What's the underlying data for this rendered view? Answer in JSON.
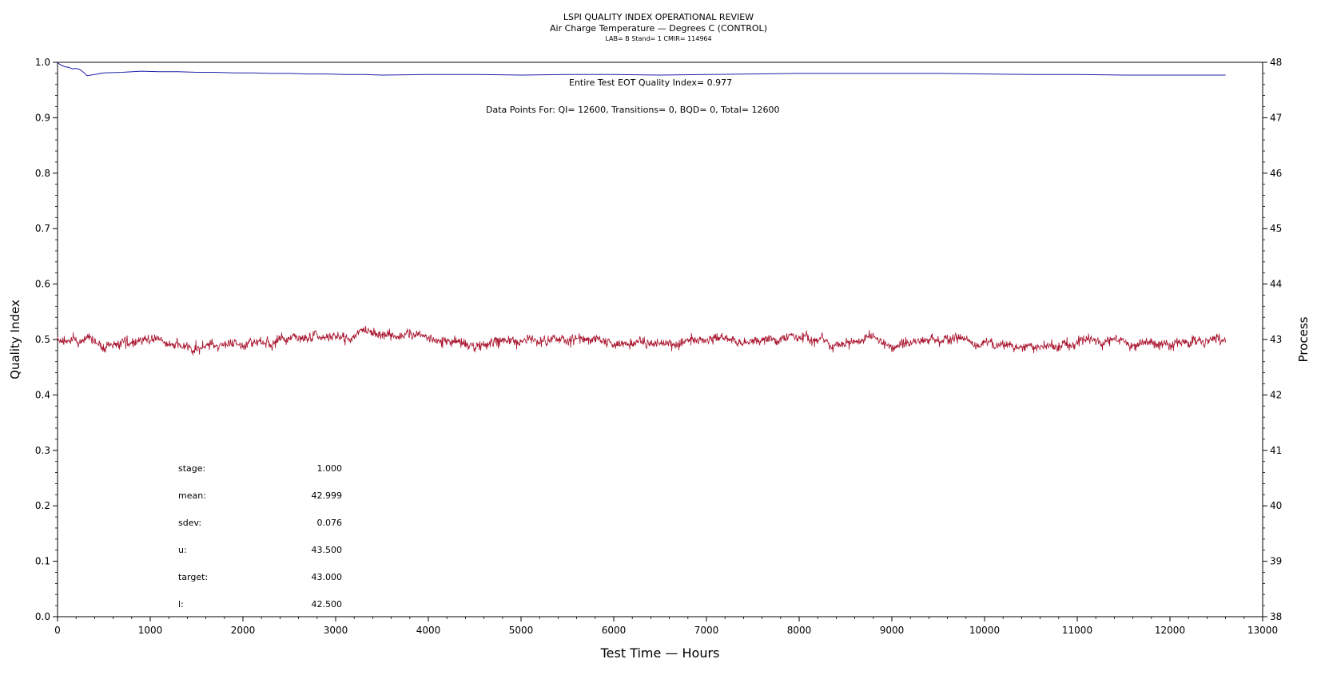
{
  "chart_data": {
    "type": "line",
    "title": "LSPI QUALITY INDEX OPERATIONAL REVIEW",
    "subtitle": "Air Charge Temperature — Degrees C (CONTROL)",
    "subtitle2": "LAB= B Stand= 1 CMIR= 114964",
    "xlabel": "Test Time — Hours",
    "ylabel_left": "Quality Index",
    "ylabel_right": "Process",
    "xlim": [
      0,
      13000
    ],
    "ylim_left": [
      0.0,
      1.0
    ],
    "ylim_right": [
      38,
      48
    ],
    "x_ticks": [
      "0",
      "1000",
      "2000",
      "3000",
      "4000",
      "5000",
      "6000",
      "7000",
      "8000",
      "9000",
      "10000",
      "11000",
      "12000",
      "13000"
    ],
    "y_ticks_left": [
      "0.0",
      "0.1",
      "0.2",
      "0.3",
      "0.4",
      "0.5",
      "0.6",
      "0.7",
      "0.8",
      "0.9",
      "1.0"
    ],
    "y_ticks_right": [
      "38",
      "39",
      "40",
      "41",
      "42",
      "43",
      "44",
      "45",
      "46",
      "47",
      "48"
    ],
    "grid": false,
    "annotations": {
      "qi_text": "Entire Test EOT Quality Index=   0.977",
      "points_text": "Data Points For: QI= 12600, Transitions=     0, BQD=     0, Total= 12600"
    },
    "series": [
      {
        "axis": "left",
        "color": "#1f1fa8",
        "x": [
          0,
          40,
          80,
          120,
          160,
          200,
          240,
          280,
          320,
          400,
          500,
          700,
          900,
          1100,
          1300,
          1500,
          1700,
          1900,
          2100,
          2300,
          2500,
          2700,
          2900,
          3100,
          3300,
          3500,
          4000,
          4500,
          5000,
          5500,
          6000,
          6500,
          7000,
          7500,
          8000,
          8500,
          9000,
          9500,
          10000,
          10500,
          11000,
          11500,
          12000,
          12600
        ],
        "y": [
          0.999,
          0.995,
          0.992,
          0.991,
          0.988,
          0.989,
          0.987,
          0.982,
          0.976,
          0.978,
          0.981,
          0.982,
          0.984,
          0.983,
          0.983,
          0.982,
          0.982,
          0.981,
          0.981,
          0.98,
          0.98,
          0.979,
          0.979,
          0.978,
          0.978,
          0.977,
          0.978,
          0.978,
          0.977,
          0.978,
          0.978,
          0.977,
          0.978,
          0.979,
          0.98,
          0.98,
          0.98,
          0.98,
          0.979,
          0.978,
          0.978,
          0.977,
          0.977,
          0.977
        ]
      },
      {
        "axis": "right",
        "color": "#a8132d",
        "x_start": 0,
        "x_end": 12600,
        "mean": 42.999,
        "sdev": 0.076
      }
    ]
  },
  "stats": [
    {
      "label": "stage:",
      "value": "1.000"
    },
    {
      "label": "mean:",
      "value": "42.999"
    },
    {
      "label": "sdev:",
      "value": "0.076"
    },
    {
      "label": "u:",
      "value": "43.500"
    },
    {
      "label": "target:",
      "value": "43.000"
    },
    {
      "label": "l:",
      "value": "42.500"
    }
  ]
}
